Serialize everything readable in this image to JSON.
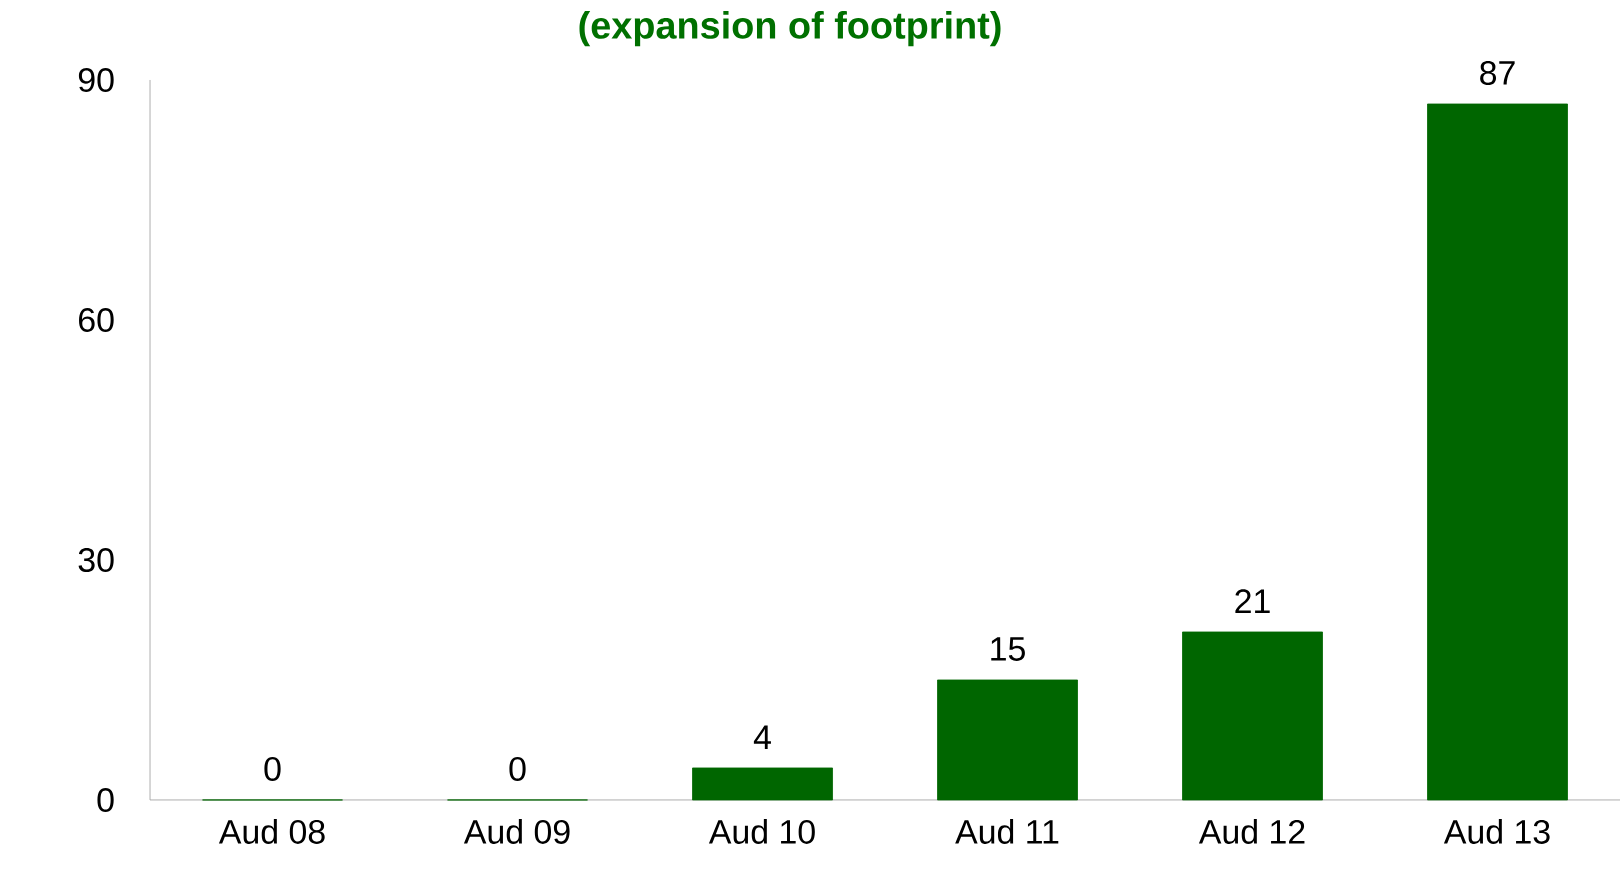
{
  "chart_data": {
    "type": "bar",
    "title": "(expansion of footprint)",
    "categories": [
      "Aud 08",
      "Aud 09",
      "Aud 10",
      "Aud 11",
      "Aud 12",
      "Aud 13"
    ],
    "values": [
      0,
      0,
      4,
      15,
      21,
      87
    ],
    "color": "#006600",
    "ylim": [
      0,
      90
    ],
    "yticks": [
      0,
      30,
      60,
      90
    ],
    "data_labels": true,
    "grid": false
  }
}
